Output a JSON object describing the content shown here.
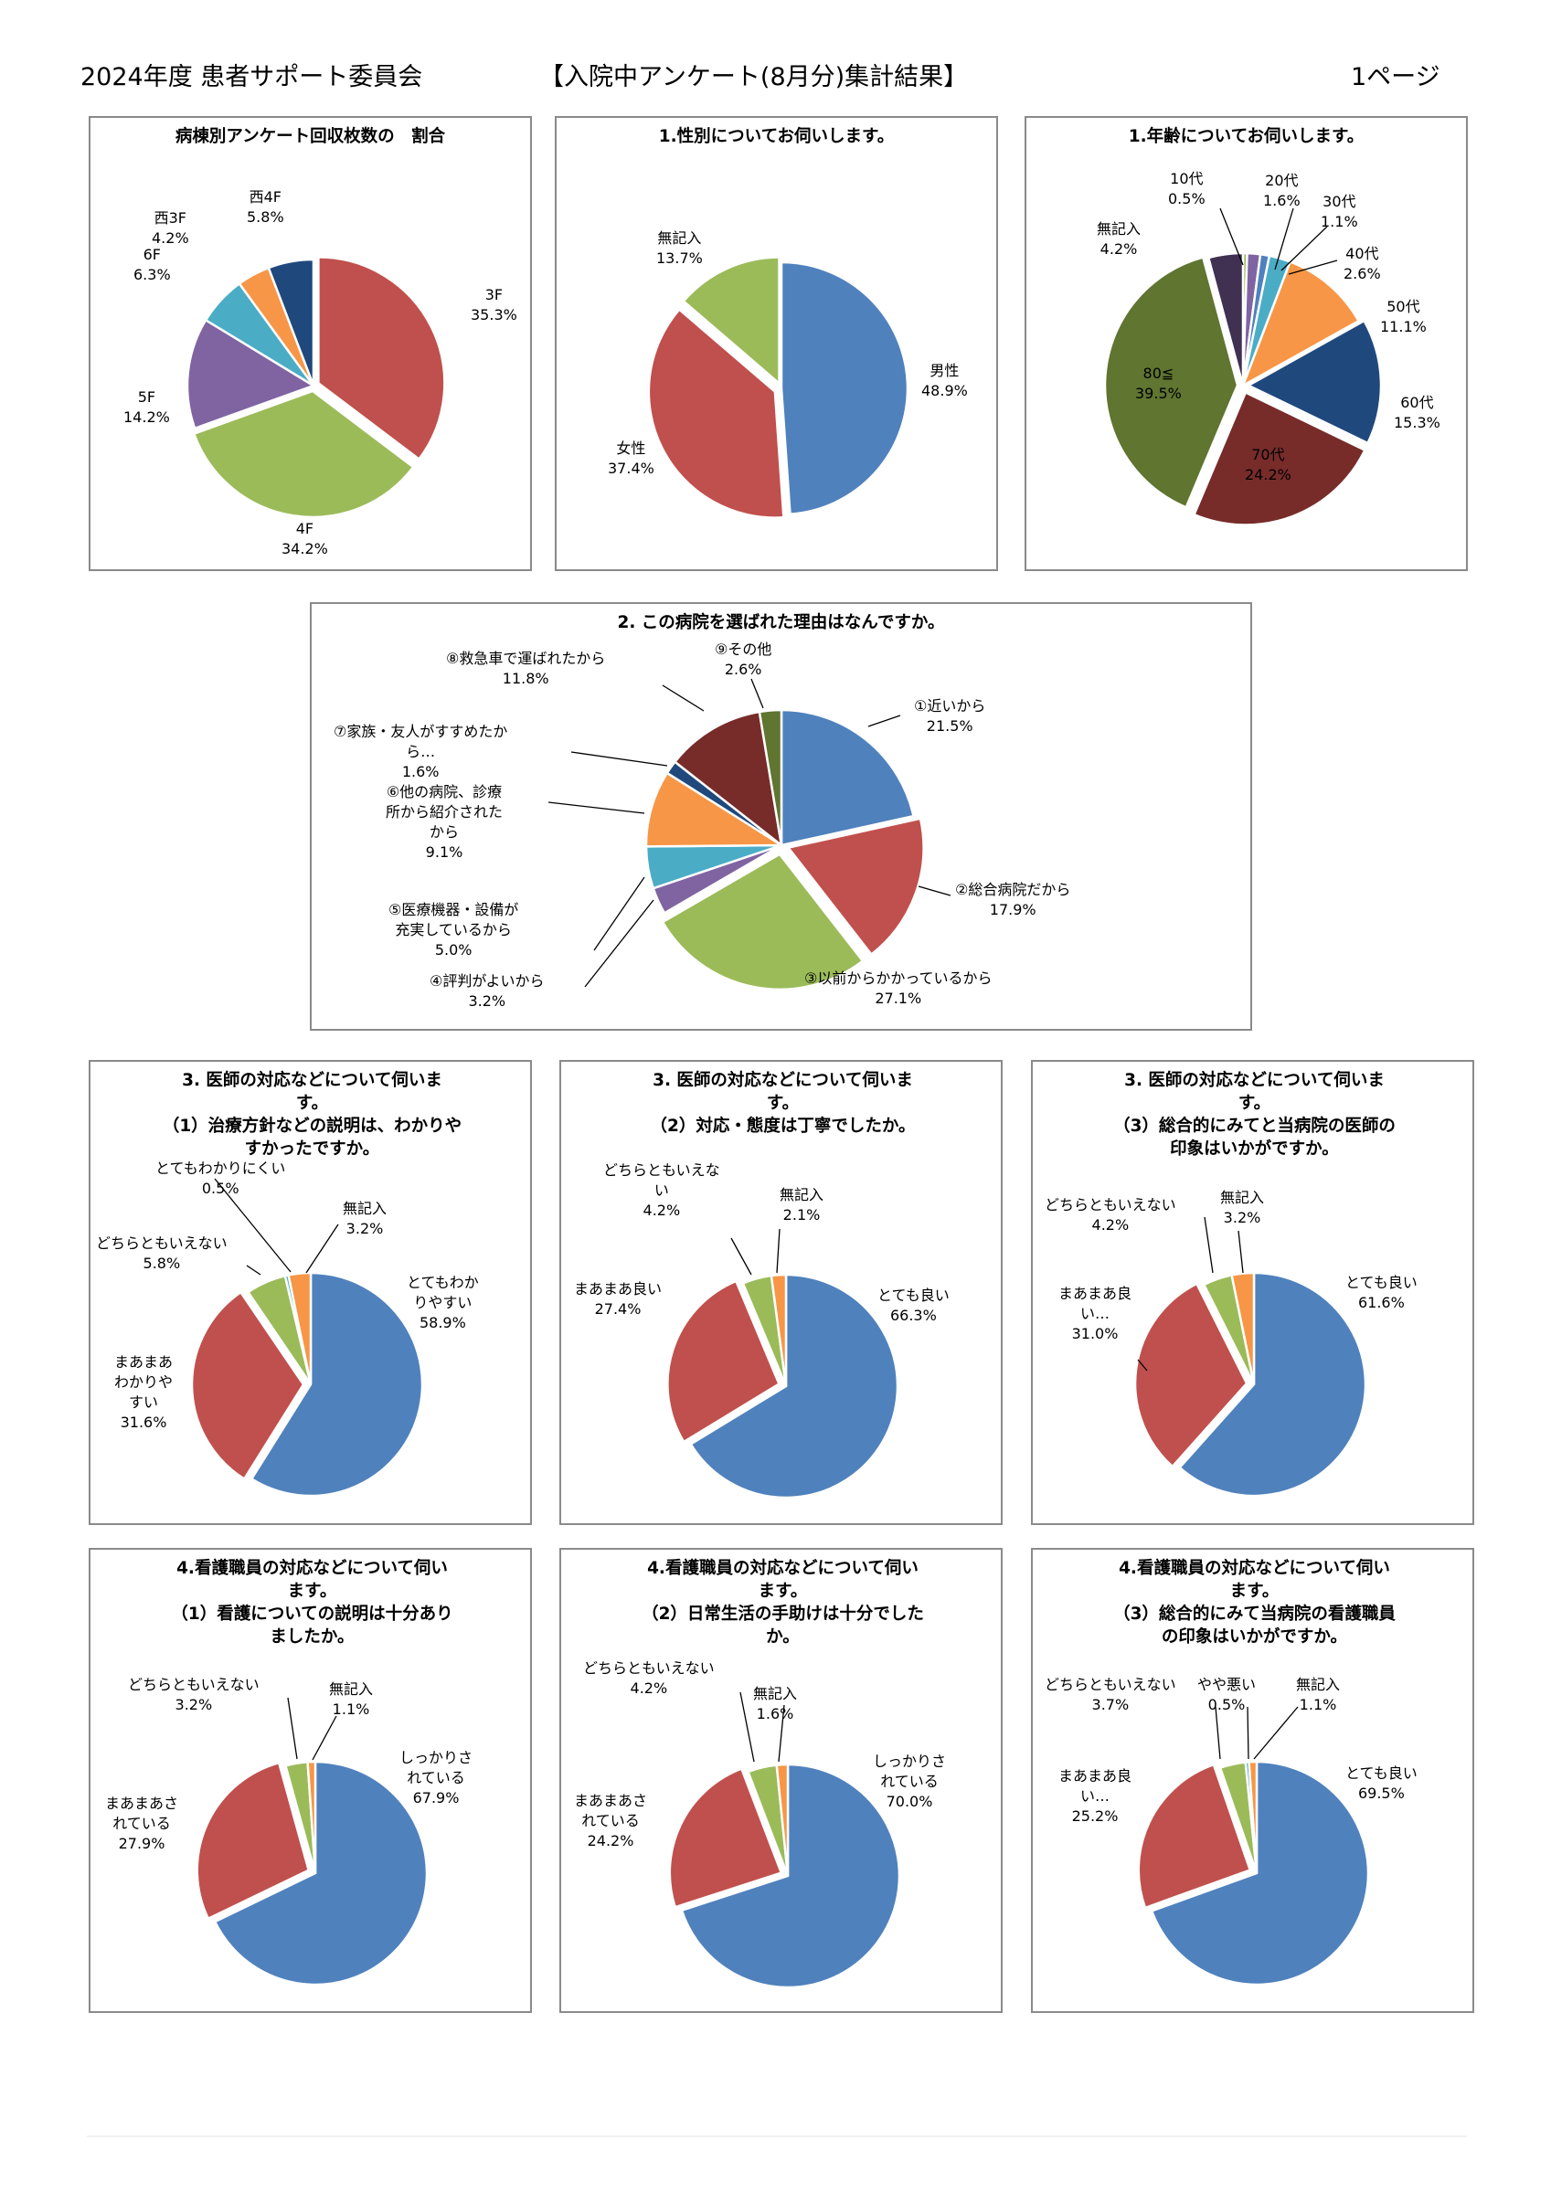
{
  "header": {
    "left": "2024年度 患者サポート委員会",
    "center": "【入院中アンケート(8月分)集計結果】",
    "right": "1ページ"
  },
  "chart_data": [
    {
      "id": "ward",
      "type": "pie",
      "title": "病棟別アンケート回収枚数の　割合",
      "slices": [
        {
          "label": "3F",
          "value": 35.3,
          "color": "#c0504d"
        },
        {
          "label": "4F",
          "value": 34.2,
          "color": "#9bbb59"
        },
        {
          "label": "5F",
          "value": 14.2,
          "color": "#8064a2"
        },
        {
          "label": "6F",
          "value": 6.3,
          "color": "#4bacc6"
        },
        {
          "label": "西3F",
          "value": 4.2,
          "color": "#f79646"
        },
        {
          "label": "西4F",
          "value": 5.8,
          "color": "#1f497d"
        }
      ]
    },
    {
      "id": "gender",
      "type": "pie",
      "title": "1.性別についてお伺いします。",
      "slices": [
        {
          "label": "男性",
          "value": 48.9,
          "color": "#4f81bd"
        },
        {
          "label": "女性",
          "value": 37.4,
          "color": "#c0504d"
        },
        {
          "label": "無記入",
          "value": 13.7,
          "color": "#9bbb59"
        }
      ]
    },
    {
      "id": "age",
      "type": "pie",
      "title": "1.年齢についてお伺いします。",
      "slices": [
        {
          "label": "10代",
          "value": 0.5,
          "color": "#9bbb59"
        },
        {
          "label": "20代",
          "value": 1.6,
          "color": "#8064a2"
        },
        {
          "label": "30代",
          "value": 1.1,
          "color": "#4f81bd"
        },
        {
          "label": "40代",
          "value": 2.6,
          "color": "#4bacc6"
        },
        {
          "label": "50代",
          "value": 11.1,
          "color": "#f79646"
        },
        {
          "label": "60代",
          "value": 15.3,
          "color": "#1f497d"
        },
        {
          "label": "70代",
          "value": 24.2,
          "color": "#772c2a"
        },
        {
          "label": "80≦",
          "value": 39.5,
          "color": "#5f7530"
        },
        {
          "label": "無記入",
          "value": 4.2,
          "color": "#403152"
        }
      ]
    },
    {
      "id": "reason",
      "type": "pie",
      "title": "2. この病院を選ばれた理由はなんですか。",
      "slices": [
        {
          "label": "①近いから",
          "value": 21.5,
          "color": "#4f81bd"
        },
        {
          "label": "②総合病院だから",
          "value": 17.9,
          "color": "#c0504d"
        },
        {
          "label": "③以前からかかっているから",
          "value": 27.1,
          "color": "#9bbb59"
        },
        {
          "label": "④評判がよいから",
          "value": 3.2,
          "color": "#8064a2"
        },
        {
          "label": "⑤医療機器・設備が\n充実しているから",
          "value": 5.0,
          "color": "#4bacc6"
        },
        {
          "label": "⑥他の病院、診療\n所から紹介された\nから",
          "value": 9.1,
          "color": "#f79646"
        },
        {
          "label": "⑦家族・友人がすすめたか\nら…",
          "value": 1.6,
          "color": "#1f497d"
        },
        {
          "label": "⑧救急車で運ばれたから",
          "value": 11.8,
          "color": "#772c2a"
        },
        {
          "label": "⑨その他",
          "value": 2.6,
          "color": "#5f7530"
        }
      ]
    },
    {
      "id": "doc1",
      "type": "pie",
      "title": "3. 医師の対応などについて伺いま\nす。\n（1）治療方針などの説明は、わかりや\nすかったですか。",
      "slices": [
        {
          "label": "とてもわか\nりやすい",
          "value": 58.9,
          "color": "#4f81bd"
        },
        {
          "label": "まあまあ\nわかりや\nすい",
          "value": 31.6,
          "color": "#c0504d"
        },
        {
          "label": "どちらともいえない",
          "value": 5.8,
          "color": "#9bbb59"
        },
        {
          "label": "とてもわかりにくい",
          "value": 0.5,
          "color": "#4bacc6"
        },
        {
          "label": "無記入",
          "value": 3.2,
          "color": "#f79646"
        }
      ]
    },
    {
      "id": "doc2",
      "type": "pie",
      "title": "3. 医師の対応などについて伺いま\nす。\n（2）対応・態度は丁寧でしたか。",
      "slices": [
        {
          "label": "とても良い",
          "value": 66.3,
          "color": "#4f81bd"
        },
        {
          "label": "まあまあ良い",
          "value": 27.4,
          "color": "#c0504d"
        },
        {
          "label": "どちらともいえな\nい",
          "value": 4.2,
          "color": "#9bbb59"
        },
        {
          "label": "無記入",
          "value": 2.1,
          "color": "#f79646"
        }
      ]
    },
    {
      "id": "doc3",
      "type": "pie",
      "title": "3. 医師の対応などについて伺いま\nす。\n（3）総合的にみてと当病院の医師の\n印象はいかがですか。",
      "slices": [
        {
          "label": "とても良い",
          "value": 61.6,
          "color": "#4f81bd"
        },
        {
          "label": "まあまあ良\nい…",
          "value": 31.0,
          "color": "#c0504d"
        },
        {
          "label": "どちらともいえない",
          "value": 4.2,
          "color": "#9bbb59"
        },
        {
          "label": "無記入",
          "value": 3.2,
          "color": "#f79646"
        }
      ]
    },
    {
      "id": "nur1",
      "type": "pie",
      "title": "4.看護職員の対応などについて伺い\nます。\n（1）看護についての説明は十分あり\nましたか。",
      "slices": [
        {
          "label": "しっかりさ\nれている",
          "value": 67.9,
          "color": "#4f81bd"
        },
        {
          "label": "まあまあさ\nれている",
          "value": 27.9,
          "color": "#c0504d"
        },
        {
          "label": "どちらともいえない",
          "value": 3.2,
          "color": "#9bbb59"
        },
        {
          "label": "無記入",
          "value": 1.1,
          "color": "#f79646"
        }
      ]
    },
    {
      "id": "nur2",
      "type": "pie",
      "title": "4.看護職員の対応などについて伺い\nます。\n（2）日常生活の手助けは十分でした\nか。",
      "slices": [
        {
          "label": "しっかりさ\nれている",
          "value": 70.0,
          "color": "#4f81bd"
        },
        {
          "label": "まあまあさ\nれている",
          "value": 24.2,
          "color": "#c0504d"
        },
        {
          "label": "どちらともいえない",
          "value": 4.2,
          "color": "#9bbb59"
        },
        {
          "label": "無記入",
          "value": 1.6,
          "color": "#f79646"
        }
      ]
    },
    {
      "id": "nur3",
      "type": "pie",
      "title": "4.看護職員の対応などについて伺い\nます。\n（3）総合的にみて当病院の看護職員\nの印象はいかがですか。",
      "slices": [
        {
          "label": "とても良い",
          "value": 69.5,
          "color": "#4f81bd"
        },
        {
          "label": "まあまあ良\nい…",
          "value": 25.2,
          "color": "#c0504d"
        },
        {
          "label": "どちらともいえない",
          "value": 3.7,
          "color": "#9bbb59"
        },
        {
          "label": "やや悪い",
          "value": 0.5,
          "color": "#4bacc6"
        },
        {
          "label": "無記入",
          "value": 1.1,
          "color": "#f79646"
        }
      ]
    }
  ]
}
